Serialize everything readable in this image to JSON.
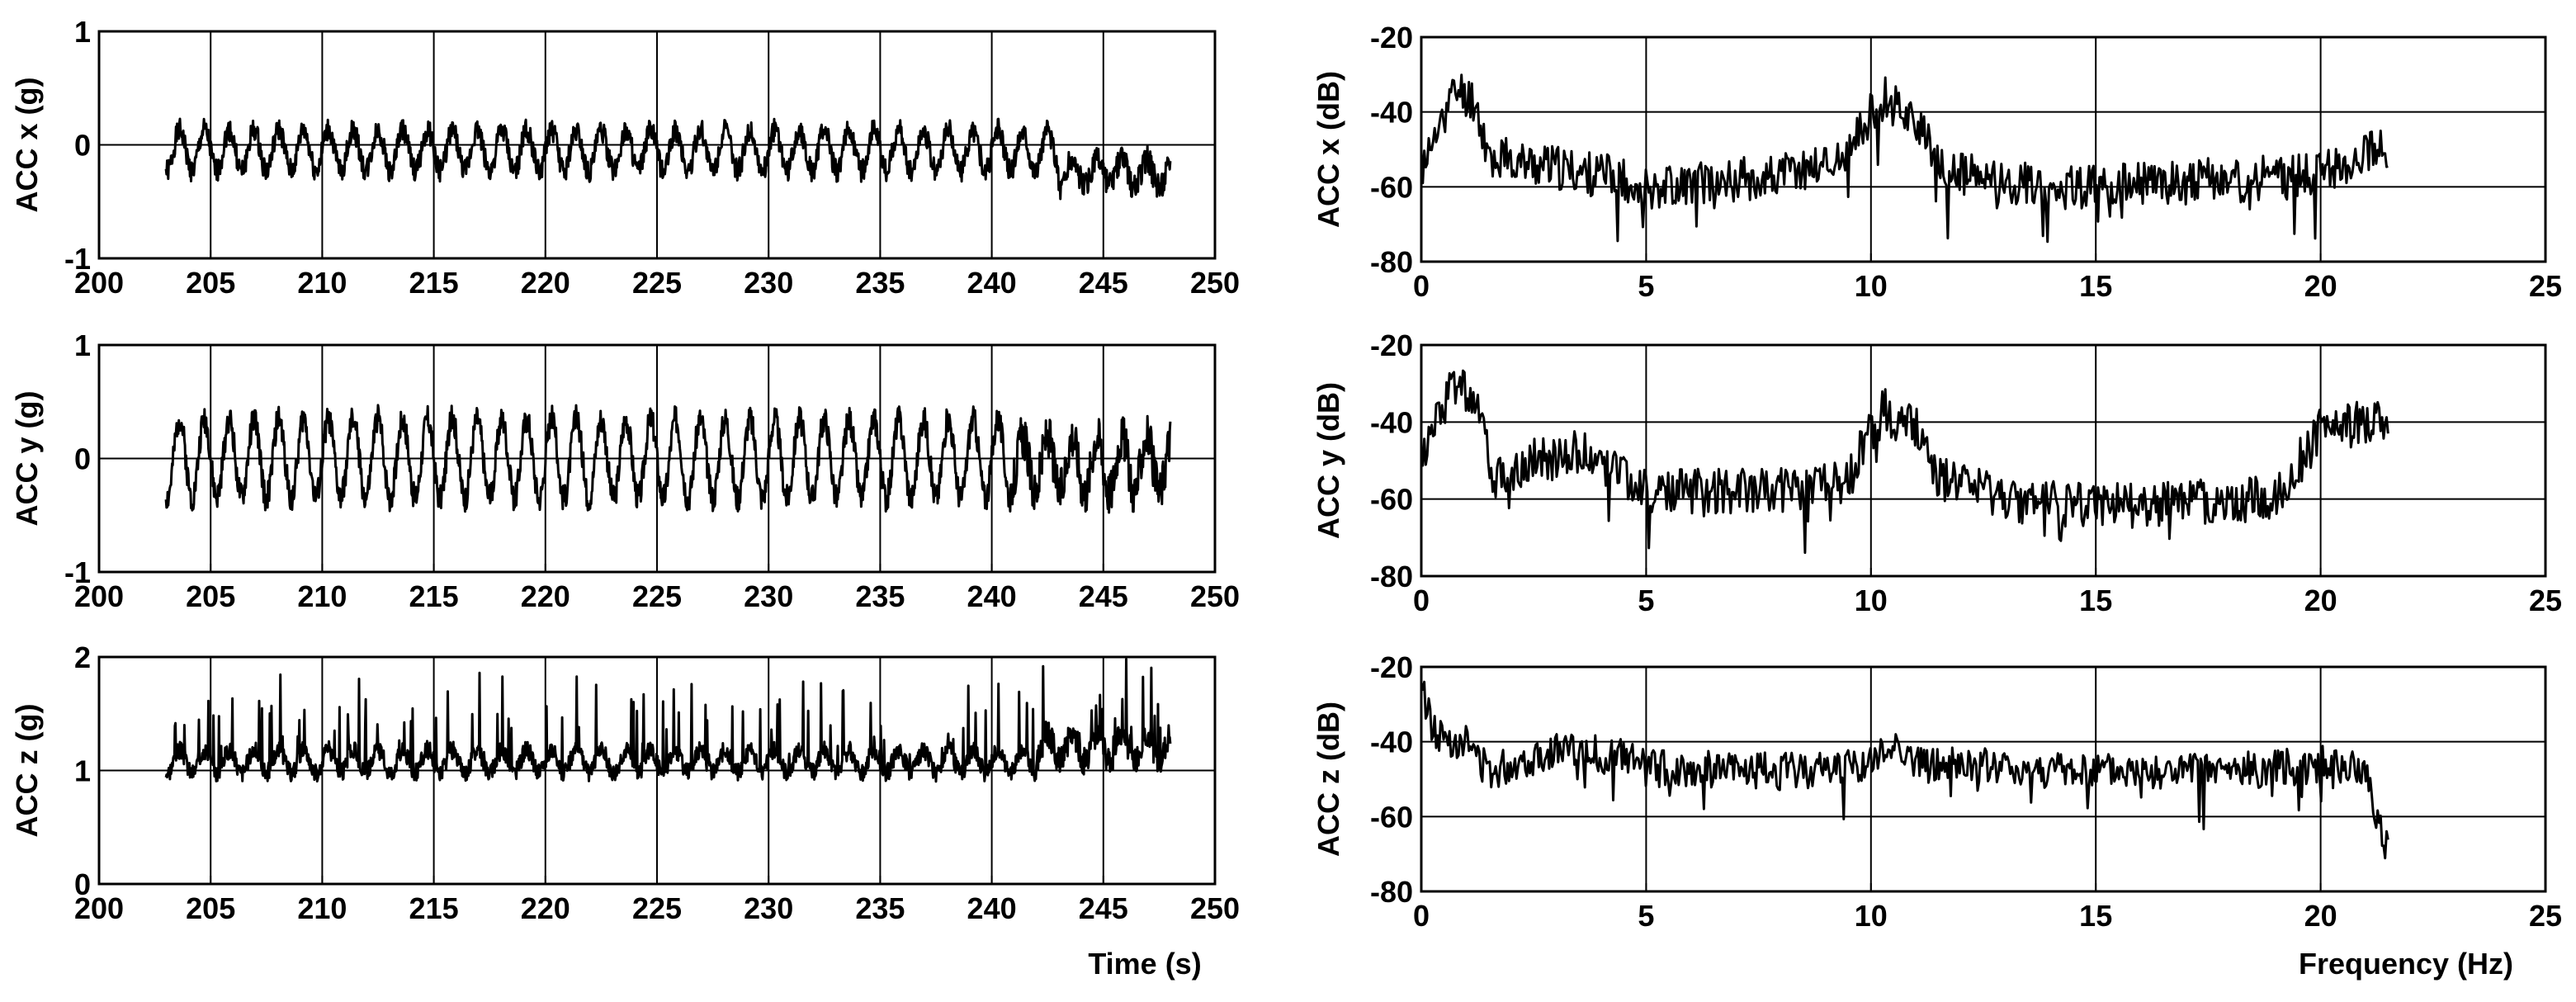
{
  "figure": {
    "left_xlabel": "Time (s)",
    "right_xlabel": "Frequency (Hz)"
  },
  "colors": {
    "line": "#000000",
    "axes": "#000000",
    "grid": "#000000",
    "background": "#ffffff"
  },
  "chart_data": [
    {
      "id": "acc-x-time",
      "type": "line",
      "ylabel": "ACC x (g)",
      "xlabel": "",
      "xlim": [
        200,
        250
      ],
      "ylim": [
        -1,
        1
      ],
      "xticks": [
        200,
        205,
        210,
        215,
        220,
        225,
        230,
        235,
        240,
        245,
        250
      ],
      "yticks": [
        -1,
        0,
        1
      ],
      "grid": true,
      "series": [
        {
          "x_start": 203,
          "x_end": 248,
          "signal": {
            "base": -0.05,
            "amp": 0.18,
            "freq": 0.9,
            "noise": 0.1,
            "seed": 1,
            "late_start": 243,
            "late_base": -0.25,
            "late_amp": 0.12,
            "late_noise": 0.12
          }
        }
      ]
    },
    {
      "id": "acc-x-spectrum",
      "type": "line",
      "ylabel": "ACC x (dB)",
      "xlabel": "",
      "xlim": [
        0,
        25
      ],
      "ylim": [
        -80,
        -20
      ],
      "xticks": [
        0,
        5,
        10,
        15,
        20,
        25
      ],
      "yticks": [
        -80,
        -60,
        -40,
        -20
      ],
      "grid": true,
      "series": [
        {
          "x_start": 0,
          "x_end": 21.5,
          "envelope": [
            [
              0,
              -55
            ],
            [
              0.3,
              -48
            ],
            [
              0.6,
              -38
            ],
            [
              0.8,
              -34
            ],
            [
              1.2,
              -37
            ],
            [
              1.5,
              -52
            ],
            [
              3,
              -55
            ],
            [
              4.5,
              -58
            ],
            [
              5,
              -60
            ],
            [
              8,
              -57
            ],
            [
              9.5,
              -52
            ],
            [
              10,
              -40
            ],
            [
              10.3,
              -36
            ],
            [
              11,
              -42
            ],
            [
              11.5,
              -55
            ],
            [
              12.5,
              -58
            ],
            [
              14,
              -60
            ],
            [
              15,
              -60
            ],
            [
              18,
              -58
            ],
            [
              20,
              -57
            ],
            [
              21,
              -50
            ],
            [
              21.5,
              -50
            ]
          ],
          "noise": 6,
          "seed": 11
        }
      ]
    },
    {
      "id": "acc-y-time",
      "type": "line",
      "ylabel": "ACC y (g)",
      "xlabel": "",
      "xlim": [
        200,
        250
      ],
      "ylim": [
        -1,
        1
      ],
      "xticks": [
        200,
        205,
        210,
        215,
        220,
        225,
        230,
        235,
        240,
        245,
        250
      ],
      "yticks": [
        -1,
        0,
        1
      ],
      "grid": true,
      "series": [
        {
          "x_start": 203,
          "x_end": 248,
          "signal": {
            "base": 0.0,
            "amp": 0.35,
            "freq": 0.9,
            "noise": 0.12,
            "seed": 2,
            "late_start": 241,
            "late_base": -0.05,
            "late_amp": 0.25,
            "late_noise": 0.2
          }
        }
      ]
    },
    {
      "id": "acc-y-spectrum",
      "type": "line",
      "ylabel": "ACC y (dB)",
      "xlabel": "",
      "xlim": [
        0,
        25
      ],
      "ylim": [
        -80,
        -20
      ],
      "xticks": [
        0,
        5,
        10,
        15,
        20,
        25
      ],
      "yticks": [
        -80,
        -60,
        -40,
        -20
      ],
      "grid": true,
      "series": [
        {
          "x_start": 0,
          "x_end": 21.5,
          "envelope": [
            [
              0,
              -50
            ],
            [
              0.3,
              -42
            ],
            [
              0.6,
              -32
            ],
            [
              0.9,
              -30
            ],
            [
              1.3,
              -36
            ],
            [
              1.6,
              -55
            ],
            [
              2.5,
              -50
            ],
            [
              3.5,
              -48
            ],
            [
              4.3,
              -52
            ],
            [
              5,
              -58
            ],
            [
              8,
              -58
            ],
            [
              9.5,
              -55
            ],
            [
              10,
              -42
            ],
            [
              10.3,
              -37
            ],
            [
              11,
              -42
            ],
            [
              11.5,
              -55
            ],
            [
              13,
              -60
            ],
            [
              15,
              -62
            ],
            [
              18,
              -60
            ],
            [
              19,
              -60
            ],
            [
              20,
              -42
            ],
            [
              21,
              -40
            ],
            [
              21.5,
              -40
            ]
          ],
          "noise": 6,
          "seed": 12
        }
      ]
    },
    {
      "id": "acc-z-time",
      "type": "line",
      "ylabel": "ACC z (g)",
      "xlabel": "Time (s)",
      "xlim": [
        200,
        250
      ],
      "ylim": [
        0,
        2
      ],
      "xticks": [
        200,
        205,
        210,
        215,
        220,
        225,
        230,
        235,
        240,
        245,
        250
      ],
      "yticks": [
        0,
        1,
        2
      ],
      "grid": true,
      "series": [
        {
          "x_start": 203,
          "x_end": 248,
          "signal": {
            "base": 1.08,
            "amp": 0.1,
            "freq": 0.9,
            "noise": 0.08,
            "seed": 3,
            "spikes": 0.06,
            "spike_amp": 0.7,
            "late_start": 242,
            "late_base": 1.2,
            "late_amp": 0.12,
            "late_noise": 0.12
          }
        }
      ]
    },
    {
      "id": "acc-z-spectrum",
      "type": "line",
      "ylabel": "ACC z (dB)",
      "xlabel": "Frequency (Hz)",
      "xlim": [
        0,
        25
      ],
      "ylim": [
        -80,
        -20
      ],
      "xticks": [
        0,
        5,
        10,
        15,
        20,
        25
      ],
      "yticks": [
        -80,
        -60,
        -40,
        -20
      ],
      "grid": true,
      "series": [
        {
          "x_start": 0,
          "x_end": 21.5,
          "envelope": [
            [
              0,
              -25
            ],
            [
              0.3,
              -38
            ],
            [
              1,
              -40
            ],
            [
              1.5,
              -48
            ],
            [
              3,
              -42
            ],
            [
              4.5,
              -44
            ],
            [
              5,
              -47
            ],
            [
              8,
              -48
            ],
            [
              10,
              -46
            ],
            [
              10.6,
              -40
            ],
            [
              11,
              -46
            ],
            [
              15,
              -48
            ],
            [
              18,
              -48
            ],
            [
              20,
              -46
            ],
            [
              21,
              -48
            ],
            [
              21.5,
              -70
            ]
          ],
          "noise": 5,
          "seed": 13
        }
      ]
    }
  ]
}
